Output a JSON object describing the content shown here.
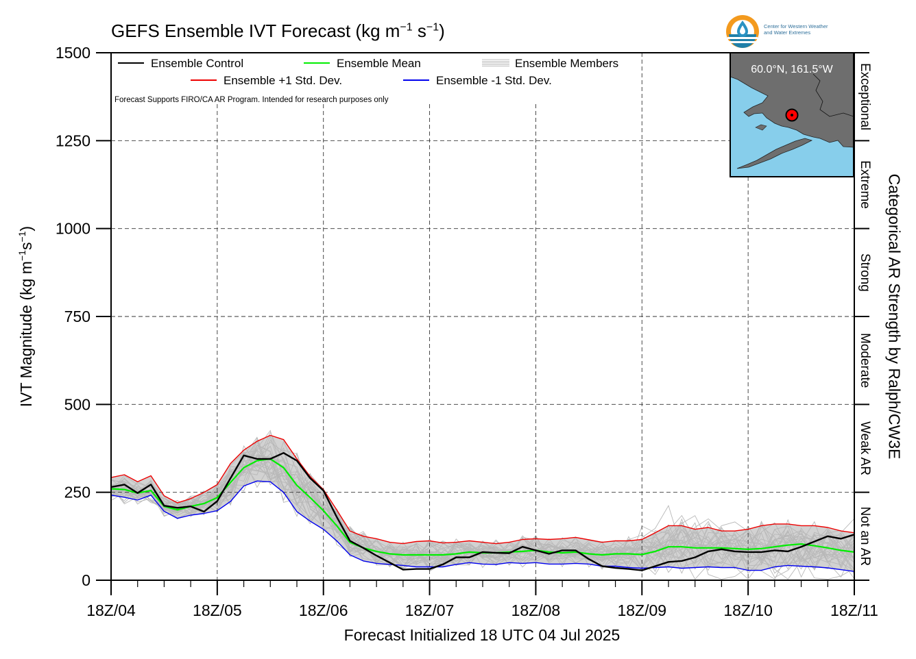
{
  "title": {
    "main": "GEFS Ensemble IVT Forecast (kg m",
    "sup1": "−1",
    "mid": " s",
    "sup2": "−1",
    "end": ")"
  },
  "ylabel": {
    "main": "IVT Magnitude (kg m",
    "sup1": "−1",
    "mid": "s",
    "sup2": "−1",
    "end": ")"
  },
  "right_label": "Categorical AR Strength by Ralph/CW3E",
  "xlabel": "Forecast Initialized 18 UTC 04 Jul 2025",
  "logo": {
    "line1": "Center for Western Weather",
    "line2": "and Water Extremes"
  },
  "disclaimer": "Forecast Supports FIRO/CA AR Program. Intended for research purposes only",
  "inset": {
    "location_label": "60.0°N, 161.5°W"
  },
  "categories": [
    "Not an AR",
    "Weak AR",
    "Moderate",
    "Strong",
    "Extreme",
    "Exceptional"
  ],
  "colors": {
    "control": "#000000",
    "mean": "#00ee00",
    "plus_std": "#ee0000",
    "minus_std": "#0000ee",
    "members": "#b8b8b8",
    "spread": "#d2d2d2",
    "ocean": "#87ceeb",
    "land": "#6e6e6e"
  },
  "chart_data": {
    "type": "line",
    "x_tick_labels": [
      "18Z/04",
      "18Z/05",
      "18Z/06",
      "18Z/07",
      "18Z/08",
      "18Z/09",
      "18Z/10",
      "18Z/11"
    ],
    "x_unit": "forecast day",
    "xlim": [
      0,
      7
    ],
    "ylim": [
      0,
      1500
    ],
    "y_ticks": [
      0,
      250,
      500,
      750,
      1000,
      1250,
      1500
    ],
    "grid": true,
    "legend_position": "top-left",
    "legend": [
      "Ensemble Control",
      "Ensemble Mean",
      "Ensemble Members",
      "Ensemble +1 Std. Dev.",
      "Ensemble -1 Std. Dev."
    ],
    "x": [
      0,
      0.125,
      0.25,
      0.375,
      0.5,
      0.625,
      0.75,
      0.875,
      1,
      1.125,
      1.25,
      1.375,
      1.5,
      1.625,
      1.75,
      1.875,
      2,
      2.125,
      2.25,
      2.375,
      2.5,
      2.625,
      2.75,
      2.875,
      3,
      3.125,
      3.25,
      3.375,
      3.5,
      3.625,
      3.75,
      3.875,
      4,
      4.125,
      4.25,
      4.375,
      4.5,
      4.625,
      4.75,
      4.875,
      5,
      5.125,
      5.25,
      5.375,
      5.5,
      5.625,
      5.75,
      5.875,
      6,
      6.125,
      6.25,
      6.375,
      6.5,
      6.625,
      6.75,
      6.875,
      7
    ],
    "series": [
      {
        "name": "Ensemble Control",
        "key": "control",
        "values": [
          265,
          272,
          248,
          272,
          212,
          206,
          210,
          195,
          225,
          290,
          355,
          345,
          345,
          362,
          340,
          290,
          255,
          180,
          112,
          92,
          70,
          50,
          30,
          32,
          32,
          45,
          65,
          65,
          80,
          78,
          77,
          95,
          85,
          75,
          85,
          85,
          60,
          40,
          35,
          32,
          28,
          40,
          52,
          55,
          65,
          82,
          88,
          82,
          80,
          80,
          85,
          82,
          95,
          110,
          125,
          118,
          130
        ]
      },
      {
        "name": "Ensemble Mean",
        "key": "mean",
        "values": [
          260,
          258,
          248,
          255,
          210,
          200,
          210,
          218,
          235,
          278,
          320,
          340,
          345,
          320,
          270,
          235,
          198,
          155,
          108,
          92,
          82,
          75,
          72,
          72,
          72,
          72,
          75,
          80,
          78,
          78,
          80,
          82,
          85,
          80,
          78,
          80,
          75,
          72,
          75,
          75,
          73,
          82,
          95,
          95,
          92,
          92,
          92,
          90,
          88,
          90,
          95,
          100,
          103,
          98,
          92,
          85,
          80
        ]
      },
      {
        "name": "Ensemble +1 Std. Dev.",
        "key": "plus_std",
        "values": [
          292,
          300,
          280,
          297,
          240,
          220,
          232,
          250,
          272,
          332,
          370,
          395,
          412,
          400,
          345,
          295,
          258,
          200,
          140,
          125,
          118,
          108,
          104,
          110,
          112,
          106,
          108,
          112,
          108,
          104,
          108,
          116,
          118,
          116,
          118,
          122,
          115,
          108,
          112,
          112,
          116,
          135,
          155,
          155,
          145,
          150,
          140,
          140,
          145,
          155,
          160,
          160,
          155,
          155,
          150,
          140,
          135
        ]
      },
      {
        "name": "Ensemble -1 Std. Dev.",
        "key": "minus_std",
        "values": [
          242,
          236,
          228,
          242,
          196,
          176,
          185,
          190,
          198,
          224,
          268,
          282,
          280,
          250,
          195,
          168,
          145,
          112,
          72,
          55,
          48,
          45,
          42,
          38,
          38,
          38,
          45,
          50,
          46,
          45,
          50,
          48,
          50,
          46,
          46,
          48,
          46,
          40,
          40,
          36,
          34,
          36,
          38,
          34,
          36,
          38,
          36,
          36,
          28,
          28,
          38,
          42,
          40,
          38,
          35,
          30,
          25
        ]
      }
    ],
    "members_note": "about 30 thin gray member traces bounded roughly by 180-455 at peak and 5-330 late period"
  }
}
